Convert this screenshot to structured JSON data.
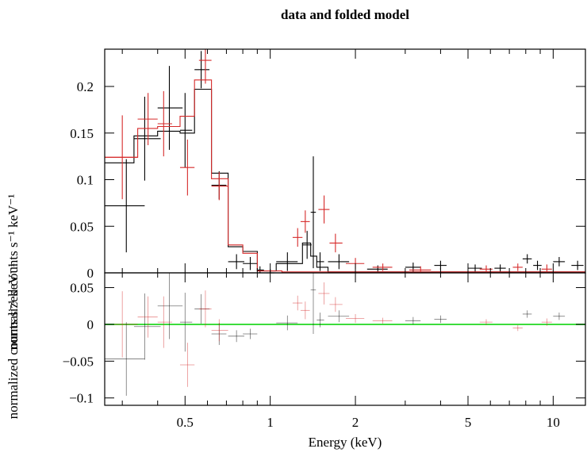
{
  "chart_data": {
    "type": "scatter",
    "title": "data and folded model",
    "xlabel": "Energy (keV)",
    "x_scale": "log",
    "xlim": [
      0.26,
      13
    ],
    "x_ticks": [
      {
        "value": 0.5,
        "label": "0.5"
      },
      {
        "value": 1,
        "label": "1"
      },
      {
        "value": 2,
        "label": "2"
      },
      {
        "value": 5,
        "label": "5"
      },
      {
        "value": 10,
        "label": "10"
      }
    ],
    "colors": {
      "series1": "#000000",
      "series2": "#d62a2a",
      "zero_line": "#3ddc3d"
    },
    "panels": [
      {
        "name": "top",
        "ylabel": "normalized counts s⁻¹ keV⁻¹",
        "ylim": [
          0,
          0.24
        ],
        "y_ticks": [
          {
            "value": 0,
            "label": "0"
          },
          {
            "value": 0.05,
            "label": "0.05"
          },
          {
            "value": 0.1,
            "label": "0.1"
          },
          {
            "value": 0.15,
            "label": "0.15"
          },
          {
            "value": 0.2,
            "label": "0.2"
          }
        ],
        "series": [
          {
            "color": "#000000",
            "points": [
              {
                "x": 0.31,
                "xerr": [
                  0.26,
                  0.36
                ],
                "y": 0.072,
                "yerr": 0.05
              },
              {
                "x": 0.36,
                "xerr": [
                  0.33,
                  0.41
                ],
                "y": 0.144,
                "yerr": 0.045
              },
              {
                "x": 0.44,
                "xerr": [
                  0.4,
                  0.49
                ],
                "y": 0.177,
                "yerr": 0.045
              },
              {
                "x": 0.5,
                "xerr": [
                  0.48,
                  0.53
                ],
                "y": 0.153,
                "yerr": 0.04
              },
              {
                "x": 0.57,
                "xerr": [
                  0.54,
                  0.61
                ],
                "y": 0.218,
                "yerr": 0.02
              },
              {
                "x": 0.66,
                "xerr": [
                  0.62,
                  0.7
                ],
                "y": 0.094,
                "yerr": 0.015
              },
              {
                "x": 0.76,
                "xerr": [
                  0.71,
                  0.81
                ],
                "y": 0.012,
                "yerr": 0.008
              },
              {
                "x": 0.85,
                "xerr": [
                  0.8,
                  0.9
                ],
                "y": 0.01,
                "yerr": 0.007
              },
              {
                "x": 0.92,
                "xerr": [
                  0.9,
                  0.95
                ],
                "y": 0.003,
                "yerr": 0.004
              },
              {
                "x": 1.0,
                "xerr": [
                  0.97,
                  1.03
                ],
                "y": 0.0,
                "yerr": 0.004
              },
              {
                "x": 1.15,
                "xerr": [
                  1.05,
                  1.25
                ],
                "y": 0.012,
                "yerr": 0.01
              },
              {
                "x": 1.35,
                "xerr": [
                  1.3,
                  1.4
                ],
                "y": 0.03,
                "yerr": 0.015
              },
              {
                "x": 1.42,
                "xerr": [
                  1.39,
                  1.45
                ],
                "y": 0.065,
                "yerr": 0.06
              },
              {
                "x": 1.5,
                "xerr": [
                  1.46,
                  1.55
                ],
                "y": 0.012,
                "yerr": 0.01
              },
              {
                "x": 1.75,
                "xerr": [
                  1.6,
                  1.9
                ],
                "y": 0.012,
                "yerr": 0.008
              },
              {
                "x": 2.4,
                "xerr": [
                  2.2,
                  2.6
                ],
                "y": 0.004,
                "yerr": 0.004
              },
              {
                "x": 3.2,
                "xerr": [
                  3.0,
                  3.4
                ],
                "y": 0.006,
                "yerr": 0.005
              },
              {
                "x": 4.0,
                "xerr": [
                  3.8,
                  4.2
                ],
                "y": 0.008,
                "yerr": 0.005
              },
              {
                "x": 5.3,
                "xerr": [
                  5.0,
                  5.6
                ],
                "y": 0.005,
                "yerr": 0.004
              },
              {
                "x": 6.5,
                "xerr": [
                  6.2,
                  6.8
                ],
                "y": 0.005,
                "yerr": 0.004
              },
              {
                "x": 8.1,
                "xerr": [
                  7.8,
                  8.4
                ],
                "y": 0.015,
                "yerr": 0.005
              },
              {
                "x": 8.8,
                "xerr": [
                  8.5,
                  9.1
                ],
                "y": 0.008,
                "yerr": 0.005
              },
              {
                "x": 10.5,
                "xerr": [
                  10.0,
                  11.0
                ],
                "y": 0.012,
                "yerr": 0.005
              },
              {
                "x": 12.2,
                "xerr": [
                  11.6,
                  12.8
                ],
                "y": 0.008,
                "yerr": 0.005
              }
            ],
            "model_steps": [
              {
                "x0": 0.26,
                "x1": 0.33,
                "y": 0.118
              },
              {
                "x0": 0.33,
                "x1": 0.4,
                "y": 0.147
              },
              {
                "x0": 0.4,
                "x1": 0.48,
                "y": 0.152
              },
              {
                "x0": 0.48,
                "x1": 0.54,
                "y": 0.15
              },
              {
                "x0": 0.54,
                "x1": 0.62,
                "y": 0.197
              },
              {
                "x0": 0.62,
                "x1": 0.71,
                "y": 0.107
              },
              {
                "x0": 0.71,
                "x1": 0.8,
                "y": 0.028
              },
              {
                "x0": 0.8,
                "x1": 0.9,
                "y": 0.023
              },
              {
                "x0": 0.9,
                "x1": 1.05,
                "y": 0.002
              },
              {
                "x0": 1.05,
                "x1": 1.3,
                "y": 0.01
              },
              {
                "x0": 1.3,
                "x1": 1.39,
                "y": 0.032
              },
              {
                "x0": 1.39,
                "x1": 1.46,
                "y": 0.018
              },
              {
                "x0": 1.46,
                "x1": 1.6,
                "y": 0.006
              },
              {
                "x0": 1.6,
                "x1": 13,
                "y": 0.001
              }
            ]
          },
          {
            "color": "#d62a2a",
            "points": [
              {
                "x": 0.3,
                "xerr": [
                  0.26,
                  0.34
                ],
                "y": 0.124,
                "yerr": 0.045
              },
              {
                "x": 0.37,
                "xerr": [
                  0.34,
                  0.4
                ],
                "y": 0.165,
                "yerr": 0.028
              },
              {
                "x": 0.42,
                "xerr": [
                  0.4,
                  0.45
                ],
                "y": 0.16,
                "yerr": 0.035
              },
              {
                "x": 0.51,
                "xerr": [
                  0.48,
                  0.54
                ],
                "y": 0.113,
                "yerr": 0.03
              },
              {
                "x": 0.59,
                "xerr": [
                  0.56,
                  0.62
                ],
                "y": 0.228,
                "yerr": 0.025
              },
              {
                "x": 0.66,
                "xerr": [
                  0.62,
                  0.71
                ],
                "y": 0.093,
                "yerr": 0.015
              },
              {
                "x": 1.25,
                "xerr": [
                  1.2,
                  1.3
                ],
                "y": 0.038,
                "yerr": 0.01
              },
              {
                "x": 1.33,
                "xerr": [
                  1.28,
                  1.38
                ],
                "y": 0.055,
                "yerr": 0.012
              },
              {
                "x": 1.55,
                "xerr": [
                  1.48,
                  1.62
                ],
                "y": 0.068,
                "yerr": 0.015
              },
              {
                "x": 1.7,
                "xerr": [
                  1.62,
                  1.8
                ],
                "y": 0.032,
                "yerr": 0.01
              },
              {
                "x": 2.0,
                "xerr": [
                  1.85,
                  2.15
                ],
                "y": 0.01,
                "yerr": 0.006
              },
              {
                "x": 2.5,
                "xerr": [
                  2.3,
                  2.7
                ],
                "y": 0.006,
                "yerr": 0.004
              },
              {
                "x": 3.4,
                "xerr": [
                  3.1,
                  3.7
                ],
                "y": 0.003,
                "yerr": 0.004
              },
              {
                "x": 5.8,
                "xerr": [
                  5.5,
                  6.1
                ],
                "y": 0.004,
                "yerr": 0.004
              },
              {
                "x": 7.5,
                "xerr": [
                  7.2,
                  7.8
                ],
                "y": 0.006,
                "yerr": 0.004
              },
              {
                "x": 9.5,
                "xerr": [
                  9.1,
                  9.9
                ],
                "y": 0.004,
                "yerr": 0.005
              }
            ],
            "model_steps": [
              {
                "x0": 0.26,
                "x1": 0.34,
                "y": 0.124
              },
              {
                "x0": 0.34,
                "x1": 0.4,
                "y": 0.155
              },
              {
                "x0": 0.4,
                "x1": 0.48,
                "y": 0.157
              },
              {
                "x0": 0.48,
                "x1": 0.54,
                "y": 0.168
              },
              {
                "x0": 0.54,
                "x1": 0.62,
                "y": 0.207
              },
              {
                "x0": 0.62,
                "x1": 0.71,
                "y": 0.101
              },
              {
                "x0": 0.71,
                "x1": 0.8,
                "y": 0.03
              },
              {
                "x0": 0.8,
                "x1": 0.9,
                "y": 0.021
              },
              {
                "x0": 0.9,
                "x1": 1.1,
                "y": 0.002
              },
              {
                "x0": 1.1,
                "x1": 13,
                "y": 0.001
              }
            ]
          }
        ]
      },
      {
        "name": "bottom",
        "ylabel": "normalized counts s⁻¹ keV⁻¹",
        "ylim": [
          -0.11,
          0.07
        ],
        "y_ticks": [
          {
            "value": -0.1,
            "label": "−0.1"
          },
          {
            "value": -0.05,
            "label": "−0.05"
          },
          {
            "value": 0,
            "label": "0"
          },
          {
            "value": 0.05,
            "label": "0.05"
          }
        ],
        "zero_line": 0,
        "series": [
          {
            "color": "#000000",
            "points": [
              {
                "x": 0.31,
                "xerr": [
                  0.26,
                  0.36
                ],
                "y": -0.047,
                "yerr": 0.05
              },
              {
                "x": 0.36,
                "xerr": [
                  0.33,
                  0.41
                ],
                "y": -0.003,
                "yerr": 0.045
              },
              {
                "x": 0.44,
                "xerr": [
                  0.4,
                  0.49
                ],
                "y": 0.025,
                "yerr": 0.045
              },
              {
                "x": 0.5,
                "xerr": [
                  0.48,
                  0.53
                ],
                "y": 0.003,
                "yerr": 0.04
              },
              {
                "x": 0.57,
                "xerr": [
                  0.54,
                  0.61
                ],
                "y": 0.021,
                "yerr": 0.02
              },
              {
                "x": 0.66,
                "xerr": [
                  0.62,
                  0.7
                ],
                "y": -0.013,
                "yerr": 0.015
              },
              {
                "x": 0.76,
                "xerr": [
                  0.71,
                  0.81
                ],
                "y": -0.016,
                "yerr": 0.008
              },
              {
                "x": 0.85,
                "xerr": [
                  0.8,
                  0.9
                ],
                "y": -0.013,
                "yerr": 0.007
              },
              {
                "x": 1.15,
                "xerr": [
                  1.05,
                  1.25
                ],
                "y": 0.002,
                "yerr": 0.01
              },
              {
                "x": 1.42,
                "xerr": [
                  1.39,
                  1.45
                ],
                "y": 0.047,
                "yerr": 0.06
              },
              {
                "x": 1.5,
                "xerr": [
                  1.46,
                  1.55
                ],
                "y": 0.006,
                "yerr": 0.01
              },
              {
                "x": 1.75,
                "xerr": [
                  1.6,
                  1.9
                ],
                "y": 0.011,
                "yerr": 0.008
              },
              {
                "x": 3.2,
                "xerr": [
                  3.0,
                  3.4
                ],
                "y": 0.005,
                "yerr": 0.005
              },
              {
                "x": 4.0,
                "xerr": [
                  3.8,
                  4.2
                ],
                "y": 0.007,
                "yerr": 0.005
              },
              {
                "x": 8.1,
                "xerr": [
                  7.8,
                  8.4
                ],
                "y": 0.014,
                "yerr": 0.005
              },
              {
                "x": 10.5,
                "xerr": [
                  10.0,
                  11.0
                ],
                "y": 0.011,
                "yerr": 0.005
              }
            ]
          },
          {
            "color": "#d62a2a",
            "points": [
              {
                "x": 0.3,
                "xerr": [
                  0.26,
                  0.34
                ],
                "y": 0.0,
                "yerr": 0.045
              },
              {
                "x": 0.37,
                "xerr": [
                  0.34,
                  0.4
                ],
                "y": 0.01,
                "yerr": 0.028
              },
              {
                "x": 0.42,
                "xerr": [
                  0.4,
                  0.45
                ],
                "y": 0.003,
                "yerr": 0.035
              },
              {
                "x": 0.51,
                "xerr": [
                  0.48,
                  0.54
                ],
                "y": -0.055,
                "yerr": 0.03
              },
              {
                "x": 0.59,
                "xerr": [
                  0.56,
                  0.62
                ],
                "y": 0.021,
                "yerr": 0.025
              },
              {
                "x": 0.66,
                "xerr": [
                  0.62,
                  0.71
                ],
                "y": -0.008,
                "yerr": 0.015
              },
              {
                "x": 1.25,
                "xerr": [
                  1.2,
                  1.3
                ],
                "y": 0.029,
                "yerr": 0.01
              },
              {
                "x": 1.33,
                "xerr": [
                  1.28,
                  1.38
                ],
                "y": 0.019,
                "yerr": 0.012
              },
              {
                "x": 1.55,
                "xerr": [
                  1.48,
                  1.62
                ],
                "y": 0.042,
                "yerr": 0.015
              },
              {
                "x": 1.7,
                "xerr": [
                  1.62,
                  1.8
                ],
                "y": 0.027,
                "yerr": 0.01
              },
              {
                "x": 2.0,
                "xerr": [
                  1.85,
                  2.15
                ],
                "y": 0.008,
                "yerr": 0.006
              },
              {
                "x": 2.5,
                "xerr": [
                  2.3,
                  2.7
                ],
                "y": 0.005,
                "yerr": 0.004
              },
              {
                "x": 5.8,
                "xerr": [
                  5.5,
                  6.1
                ],
                "y": 0.003,
                "yerr": 0.004
              },
              {
                "x": 7.5,
                "xerr": [
                  7.2,
                  7.8
                ],
                "y": -0.005,
                "yerr": 0.004
              },
              {
                "x": 9.5,
                "xerr": [
                  9.1,
                  9.9
                ],
                "y": 0.003,
                "yerr": 0.005
              }
            ]
          }
        ]
      }
    ]
  }
}
